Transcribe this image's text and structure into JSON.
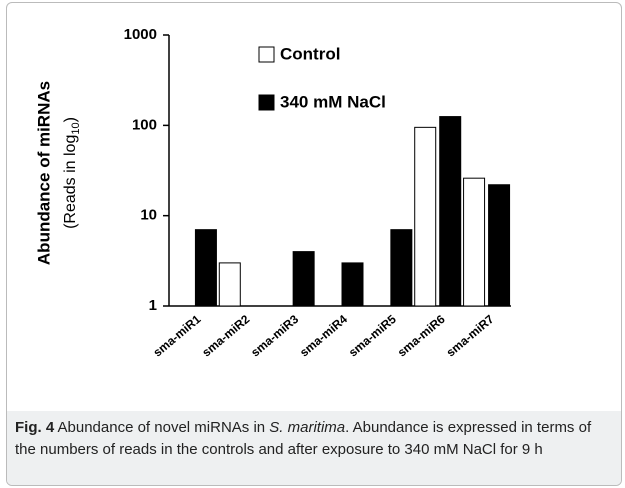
{
  "chart_data": {
    "type": "bar",
    "y_label": "Abundance of miRNAs",
    "y_sublabel": {
      "text": "(Reads  in log",
      "subscript": "10",
      "close": ")"
    },
    "categories": [
      "sma-miR1",
      "sma-miR2",
      "sma-miR3",
      "sma-miR4",
      "sma-miR5",
      "sma-miR6",
      "sma-miR7"
    ],
    "series": [
      {
        "name": "Control",
        "color": "#ffffff",
        "values": [
          null,
          3,
          null,
          null,
          null,
          95,
          26
        ]
      },
      {
        "name": "340 mM NaCl",
        "color": "#000000",
        "values": [
          7,
          null,
          4,
          3,
          7,
          125,
          22
        ]
      }
    ],
    "ylim": [
      1,
      1000
    ],
    "yticks": [
      1,
      10,
      100,
      1000
    ],
    "log_scale": true,
    "grid": false,
    "legend": "top"
  },
  "caption": {
    "label": "Fig. 4",
    "text_1": " Abundance of novel miRNAs in ",
    "species": "S. maritima",
    "text_2": ". Abundance is expressed in terms of the numbers of reads in the controls and after exposure to 340 mM NaCl for 9 h"
  }
}
